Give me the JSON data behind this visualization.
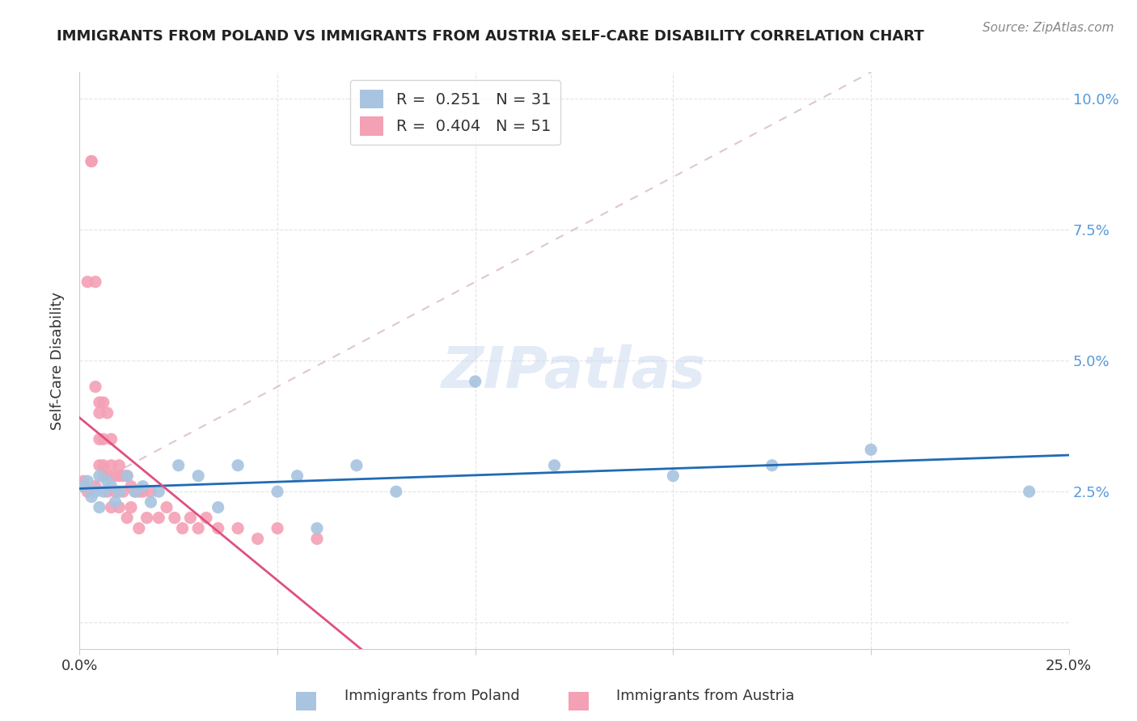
{
  "title": "IMMIGRANTS FROM POLAND VS IMMIGRANTS FROM AUSTRIA SELF-CARE DISABILITY CORRELATION CHART",
  "source": "Source: ZipAtlas.com",
  "xlabel": "",
  "ylabel": "Self-Care Disability",
  "xlim": [
    0.0,
    0.25
  ],
  "ylim": [
    -0.005,
    0.105
  ],
  "xticks": [
    0.0,
    0.05,
    0.1,
    0.15,
    0.2,
    0.25
  ],
  "xticklabels": [
    "0.0%",
    "",
    "",
    "",
    "",
    "25.0%"
  ],
  "yticks": [
    0.0,
    0.025,
    0.05,
    0.075,
    0.1
  ],
  "yticklabels_right": [
    "",
    "2.5%",
    "5.0%",
    "7.5%",
    "10.0%"
  ],
  "poland_color": "#a8c4e0",
  "austria_color": "#f4a0b5",
  "poland_line_color": "#1f6bb5",
  "austria_line_color": "#e05080",
  "austria_dash_color": "#d0a0b0",
  "poland_R": 0.251,
  "poland_N": 31,
  "austria_R": 0.404,
  "austria_N": 51,
  "poland_scatter_x": [
    0.001,
    0.002,
    0.003,
    0.004,
    0.005,
    0.005,
    0.006,
    0.007,
    0.008,
    0.009,
    0.01,
    0.012,
    0.014,
    0.016,
    0.018,
    0.02,
    0.025,
    0.03,
    0.035,
    0.04,
    0.05,
    0.055,
    0.06,
    0.07,
    0.08,
    0.1,
    0.12,
    0.15,
    0.175,
    0.2,
    0.24
  ],
  "poland_scatter_y": [
    0.026,
    0.027,
    0.024,
    0.025,
    0.028,
    0.022,
    0.025,
    0.027,
    0.026,
    0.023,
    0.025,
    0.028,
    0.025,
    0.026,
    0.023,
    0.025,
    0.03,
    0.028,
    0.022,
    0.03,
    0.025,
    0.028,
    0.018,
    0.03,
    0.025,
    0.046,
    0.03,
    0.028,
    0.03,
    0.033,
    0.025
  ],
  "austria_scatter_x": [
    0.001,
    0.002,
    0.002,
    0.003,
    0.003,
    0.004,
    0.004,
    0.004,
    0.005,
    0.005,
    0.005,
    0.005,
    0.006,
    0.006,
    0.006,
    0.006,
    0.007,
    0.007,
    0.007,
    0.008,
    0.008,
    0.008,
    0.009,
    0.009,
    0.01,
    0.01,
    0.01,
    0.011,
    0.011,
    0.012,
    0.012,
    0.013,
    0.013,
    0.014,
    0.015,
    0.015,
    0.016,
    0.017,
    0.018,
    0.02,
    0.022,
    0.024,
    0.026,
    0.028,
    0.03,
    0.032,
    0.035,
    0.04,
    0.045,
    0.05,
    0.06
  ],
  "austria_scatter_y": [
    0.027,
    0.065,
    0.025,
    0.088,
    0.088,
    0.065,
    0.026,
    0.045,
    0.04,
    0.042,
    0.035,
    0.03,
    0.028,
    0.035,
    0.042,
    0.03,
    0.028,
    0.04,
    0.025,
    0.035,
    0.03,
    0.022,
    0.028,
    0.025,
    0.03,
    0.028,
    0.022,
    0.028,
    0.025,
    0.028,
    0.02,
    0.026,
    0.022,
    0.025,
    0.025,
    0.018,
    0.025,
    0.02,
    0.025,
    0.02,
    0.022,
    0.02,
    0.018,
    0.02,
    0.018,
    0.02,
    0.018,
    0.018,
    0.016,
    0.018,
    0.016
  ],
  "watermark": "ZIPatlas",
  "background_color": "#ffffff",
  "grid_color": "#dddddd"
}
